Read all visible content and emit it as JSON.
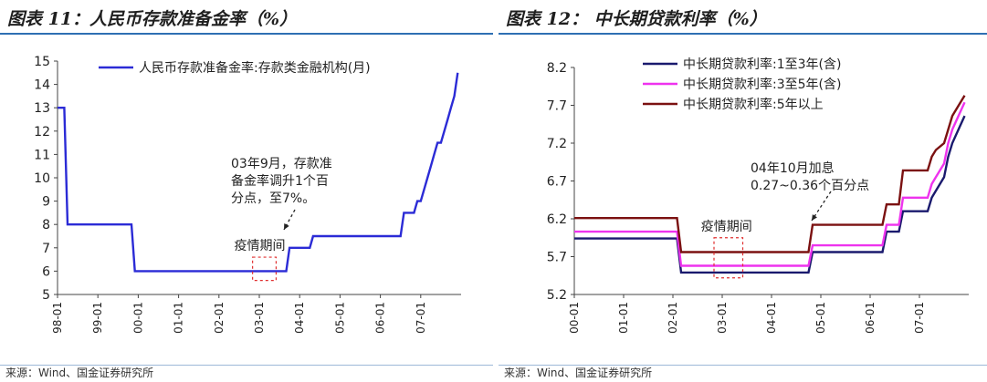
{
  "panels": {
    "left": {
      "title": "图表 11：人民币存款准备金率（%）",
      "source": "来源：Wind、国金证券研究所"
    },
    "right": {
      "title": "图表 12：  中长期贷款利率（%）",
      "source": "来源：Wind、国金证券研究所"
    }
  },
  "chart_data": [
    {
      "type": "line",
      "title": "",
      "xlabel": "",
      "ylabel": "",
      "ylim": [
        5,
        15
      ],
      "yticks": [
        5,
        6,
        7,
        8,
        9,
        10,
        11,
        12,
        13,
        14,
        15
      ],
      "xlim": [
        "1998-01",
        "2008-01"
      ],
      "xticks": [
        "98-01",
        "99-01",
        "00-01",
        "01-01",
        "02-01",
        "03-01",
        "04-01",
        "05-01",
        "06-01",
        "07-01"
      ],
      "xtick_dates": [
        "1998-01",
        "1999-01",
        "2000-01",
        "2001-01",
        "2002-01",
        "2003-01",
        "2004-01",
        "2005-01",
        "2006-01",
        "2007-01"
      ],
      "grid": false,
      "legend_position": "top",
      "series": [
        {
          "name": "人民币存款准备金率:存款类金融机构(月)",
          "color": "#2b2bd6",
          "points": [
            [
              "1998-01",
              13
            ],
            [
              "1998-03",
              13
            ],
            [
              "1998-04",
              8
            ],
            [
              "1999-11",
              8
            ],
            [
              "1999-12",
              6
            ],
            [
              "2003-09",
              6
            ],
            [
              "2003-10",
              7
            ],
            [
              "2004-04",
              7
            ],
            [
              "2004-05",
              7.5
            ],
            [
              "2006-07",
              7.5
            ],
            [
              "2006-08",
              8.5
            ],
            [
              "2006-11",
              8.5
            ],
            [
              "2006-12",
              9
            ],
            [
              "2007-01",
              9
            ],
            [
              "2007-02",
              9.5
            ],
            [
              "2007-03",
              10
            ],
            [
              "2007-04",
              10.5
            ],
            [
              "2007-05",
              11
            ],
            [
              "2007-06",
              11.5
            ],
            [
              "2007-07",
              11.5
            ],
            [
              "2007-08",
              12
            ],
            [
              "2007-09",
              12.5
            ],
            [
              "2007-10",
              13
            ],
            [
              "2007-11",
              13.5
            ],
            [
              "2007-12",
              14.5
            ]
          ]
        }
      ],
      "annotations": [
        {
          "text_lines": [
            "03年9月，存款准",
            "备金率调升1个百",
            "分点，至7%。"
          ]
        },
        {
          "text": "疫情期间",
          "period": [
            "2002-11",
            "2003-06"
          ],
          "y_range": [
            5.6,
            6.6
          ]
        }
      ]
    },
    {
      "type": "line",
      "title": "",
      "xlabel": "",
      "ylabel": "",
      "ylim": [
        5.2,
        8.2
      ],
      "yticks": [
        5.2,
        5.7,
        6.2,
        6.7,
        7.2,
        7.7,
        8.2
      ],
      "xlim": [
        "2000-01",
        "2008-01"
      ],
      "xticks": [
        "00-01",
        "01-01",
        "02-01",
        "03-01",
        "04-01",
        "05-01",
        "06-01",
        "07-01"
      ],
      "xtick_dates": [
        "2000-01",
        "2001-01",
        "2002-01",
        "2003-01",
        "2004-01",
        "2005-01",
        "2006-01",
        "2007-01"
      ],
      "grid": false,
      "legend_position": "top-right",
      "series": [
        {
          "name": "中长期贷款利率:1至3年(含)",
          "color": "#1a1a6e",
          "points": [
            [
              "2000-01",
              5.94
            ],
            [
              "2002-02",
              5.94
            ],
            [
              "2002-03",
              5.49
            ],
            [
              "2004-10",
              5.49
            ],
            [
              "2004-11",
              5.76
            ],
            [
              "2006-04",
              5.76
            ],
            [
              "2006-05",
              6.03
            ],
            [
              "2006-08",
              6.03
            ],
            [
              "2006-09",
              6.3
            ],
            [
              "2007-03",
              6.3
            ],
            [
              "2007-04",
              6.48
            ],
            [
              "2007-05",
              6.57
            ],
            [
              "2007-07",
              6.75
            ],
            [
              "2007-08",
              7.02
            ],
            [
              "2007-09",
              7.2
            ],
            [
              "2007-12",
              7.56
            ]
          ]
        },
        {
          "name": "中长期贷款利率:3至5年(含)",
          "color": "#ee33ee",
          "points": [
            [
              "2000-01",
              6.03
            ],
            [
              "2002-02",
              6.03
            ],
            [
              "2002-03",
              5.58
            ],
            [
              "2004-10",
              5.58
            ],
            [
              "2004-11",
              5.85
            ],
            [
              "2006-04",
              5.85
            ],
            [
              "2006-05",
              6.12
            ],
            [
              "2006-08",
              6.12
            ],
            [
              "2006-09",
              6.48
            ],
            [
              "2007-03",
              6.48
            ],
            [
              "2007-04",
              6.66
            ],
            [
              "2007-05",
              6.75
            ],
            [
              "2007-07",
              6.93
            ],
            [
              "2007-08",
              7.2
            ],
            [
              "2007-09",
              7.38
            ],
            [
              "2007-12",
              7.74
            ]
          ]
        },
        {
          "name": "中长期贷款利率:5年以上",
          "color": "#7b1111",
          "points": [
            [
              "2000-01",
              6.21
            ],
            [
              "2002-02",
              6.21
            ],
            [
              "2002-03",
              5.76
            ],
            [
              "2004-10",
              5.76
            ],
            [
              "2004-11",
              6.12
            ],
            [
              "2006-04",
              6.12
            ],
            [
              "2006-05",
              6.39
            ],
            [
              "2006-08",
              6.39
            ],
            [
              "2006-09",
              6.84
            ],
            [
              "2007-03",
              6.84
            ],
            [
              "2007-04",
              7.02
            ],
            [
              "2007-05",
              7.11
            ],
            [
              "2007-07",
              7.2
            ],
            [
              "2007-08",
              7.38
            ],
            [
              "2007-09",
              7.56
            ],
            [
              "2007-12",
              7.83
            ]
          ]
        }
      ],
      "annotations": [
        {
          "text_lines": [
            "04年10月加息",
            "0.27~0.36个百分点"
          ]
        },
        {
          "text": "疫情期间",
          "period": [
            "2002-11",
            "2003-06"
          ],
          "y_range": [
            5.42,
            5.95
          ]
        }
      ]
    }
  ]
}
